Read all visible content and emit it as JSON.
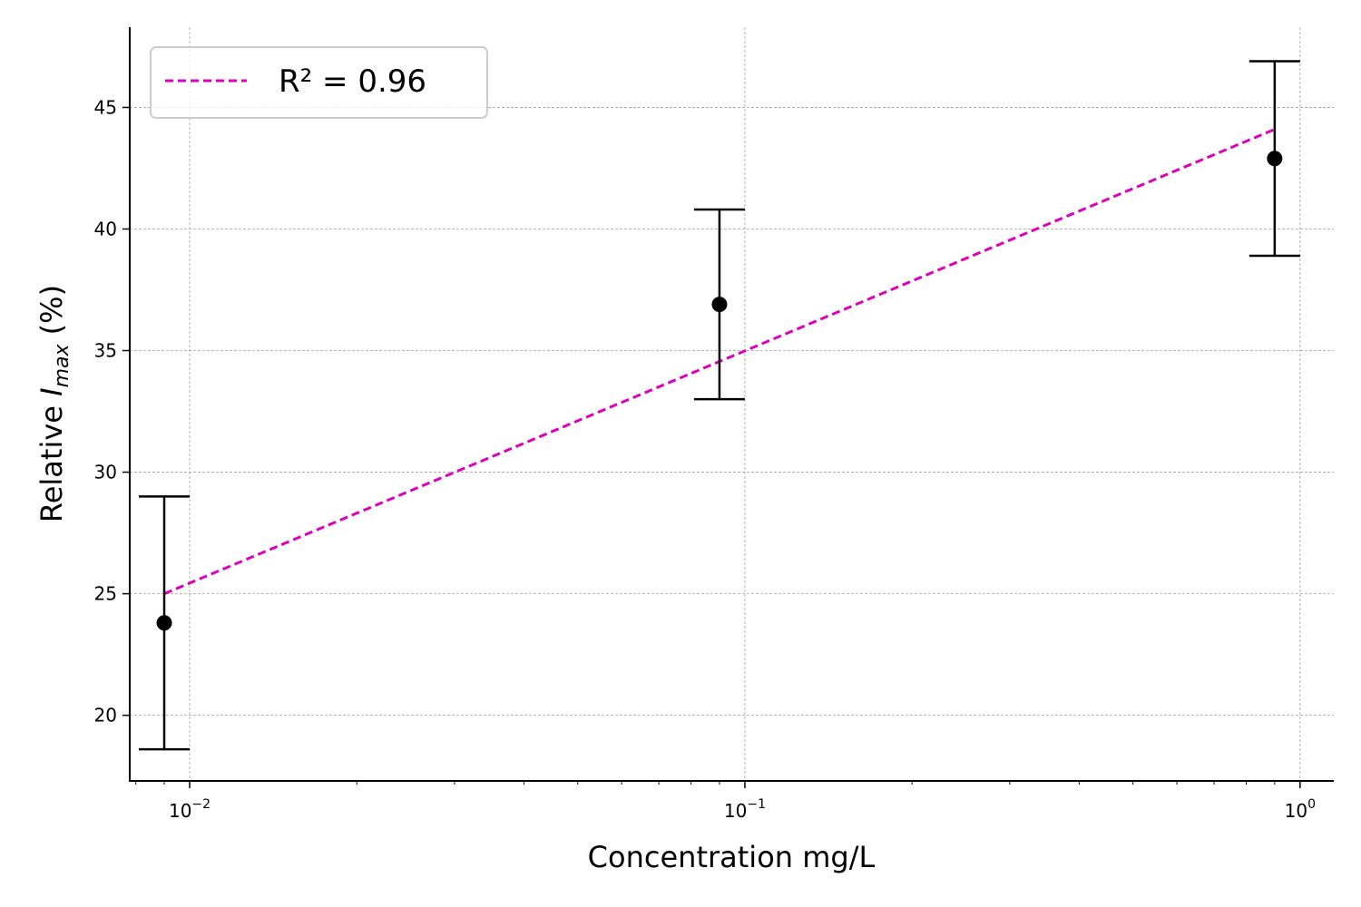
{
  "chart_data": {
    "type": "scatter",
    "xscale": "log",
    "xlim": [
      0.0078,
      1.15
    ],
    "ylim": [
      17.3,
      48.3
    ],
    "xlabel": "Concentration mg/L",
    "ylabel": {
      "prefix": "Relative ",
      "symbol": "I",
      "subscript": "max",
      "suffix": " (%)"
    },
    "x_ticks": [
      {
        "value": 0.01,
        "base": "10",
        "exp": "−2"
      },
      {
        "value": 0.1,
        "base": "10",
        "exp": "−1"
      },
      {
        "value": 1,
        "base": "10",
        "exp": "0"
      }
    ],
    "y_ticks": [
      20,
      25,
      30,
      35,
      40,
      45
    ],
    "grid": true,
    "series": [
      {
        "x": [
          0.009,
          0.09,
          0.9
        ],
        "y": [
          23.8,
          36.9,
          42.9
        ],
        "yerr_low": [
          18.6,
          33.0,
          38.9
        ],
        "yerr_high": [
          29.0,
          40.8,
          46.9
        ],
        "color": "#000000"
      }
    ],
    "fit": {
      "label": "R² = 0.96",
      "x": [
        0.009,
        0.9
      ],
      "y": [
        25.0,
        44.1
      ],
      "color": "#dd00bb",
      "style": "dashed"
    },
    "legend_position": "top-left"
  }
}
